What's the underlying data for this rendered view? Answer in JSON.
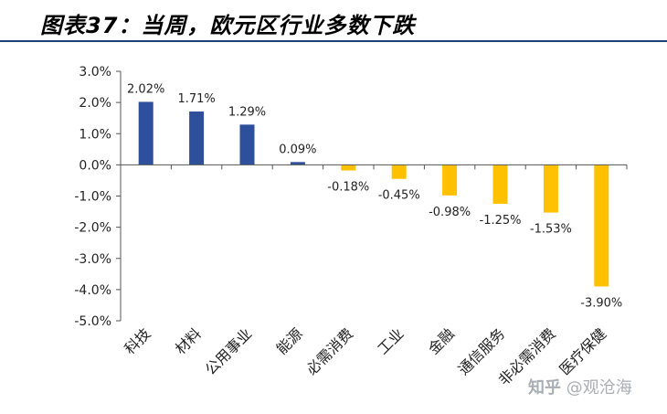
{
  "title": "图表37：当周，欧元区行业多数下跌",
  "watermark": {
    "logo": "知乎",
    "text": "@观沧海"
  },
  "colors": {
    "positive": "#2e4f9c",
    "negative": "#ffc000",
    "axis": "#555555",
    "title_rule": "#1f3f7a"
  },
  "chart_data": {
    "type": "bar",
    "title": "图表37：当周，欧元区行业多数下跌",
    "categories": [
      "科技",
      "材料",
      "公用事业",
      "能源",
      "必需消费",
      "工业",
      "金融",
      "通信服务",
      "非必需消费",
      "医疗保健"
    ],
    "values": [
      2.02,
      1.71,
      1.29,
      0.09,
      -0.18,
      -0.45,
      -0.98,
      -1.25,
      -1.53,
      -3.9
    ],
    "data_labels": [
      "2.02%",
      "1.71%",
      "1.29%",
      "0.09%",
      "-0.18%",
      "-0.45%",
      "-0.98%",
      "-1.25%",
      "-1.53%",
      "-3.90%"
    ],
    "yticks": [
      "3.0%",
      "2.0%",
      "1.0%",
      "0.0%",
      "-1.0%",
      "-2.0%",
      "-3.0%",
      "-4.0%",
      "-5.0%"
    ],
    "ylim": [
      -5,
      3
    ],
    "xlabel": "",
    "ylabel": "",
    "grid": false
  }
}
